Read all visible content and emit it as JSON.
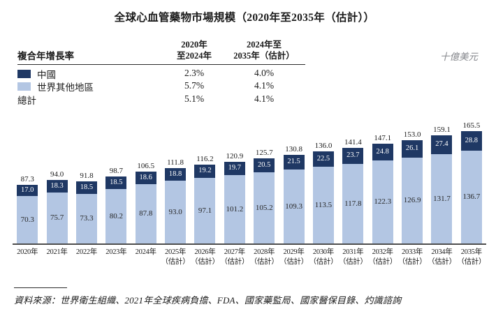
{
  "title": "全球心血管藥物市場規模（2020年至2035年（估計））",
  "unit_label": "十億美元",
  "cagr_table": {
    "row_header": "複合年增長率",
    "col_headers": [
      {
        "line1": "2020年",
        "line2": "至2024年"
      },
      {
        "line1": "2024年至",
        "line2": "2035年（估計）"
      }
    ],
    "rows": [
      {
        "label": "中國",
        "swatch_color": "#1F3864",
        "values": [
          "2.3%",
          "4.0%"
        ]
      },
      {
        "label": "世界其他地區",
        "swatch_color": "#B3C6E3",
        "values": [
          "5.7%",
          "4.1%"
        ]
      },
      {
        "label": "總計",
        "swatch_color": null,
        "values": [
          "5.1%",
          "4.1%"
        ]
      }
    ]
  },
  "chart_data": {
    "type": "bar",
    "subtype": "stacked",
    "title": "全球心血管藥物市場規模（2020年至2035年（估計））",
    "ylabel": "十億美元",
    "xlabel": "",
    "grid": false,
    "legend_position": "top-left-table",
    "ylim": [
      0,
      175
    ],
    "categories": [
      "2020年",
      "2021年",
      "2022年",
      "2023年",
      "2024年",
      "2025年",
      "2026年",
      "2027年",
      "2028年",
      "2029年",
      "2030年",
      "2031年",
      "2032年",
      "2033年",
      "2034年",
      "2035年"
    ],
    "estimate_label": "（估計）",
    "estimate_start_index": 5,
    "series": [
      {
        "name": "中國",
        "color": "#1F3864",
        "values": [
          "17.0",
          "18.3",
          "18.5",
          "18.5",
          "18.6",
          "18.8",
          "19.2",
          "19.7",
          "20.5",
          "21.5",
          "22.5",
          "23.7",
          "24.8",
          "26.1",
          "27.4",
          "28.8"
        ]
      },
      {
        "name": "世界其他地區",
        "color": "#B3C6E3",
        "values": [
          "70.3",
          "75.7",
          "73.3",
          "80.2",
          "87.8",
          "93.0",
          "97.1",
          "101.2",
          "105.2",
          "109.3",
          "113.5",
          "117.8",
          "122.3",
          "126.9",
          "131.7",
          "136.7"
        ]
      }
    ],
    "totals": [
      "87.3",
      "94.0",
      "91.8",
      "98.7",
      "106.5",
      "111.8",
      "116.2",
      "120.9",
      "125.7",
      "130.8",
      "136.0",
      "141.4",
      "147.1",
      "153.0",
      "159.1",
      "165.5"
    ]
  },
  "source_note": "資料來源：世界衛生組織、2021年全球疾病負擔、FDA、國家藥監局、國家醫保目錄、灼識諮詢",
  "colors": {
    "china": "#1F3864",
    "rest_of_world": "#B3C6E3",
    "axis_line": "#4d4d4d",
    "text": "#1a1a1a",
    "unit_text": "#85878c"
  }
}
